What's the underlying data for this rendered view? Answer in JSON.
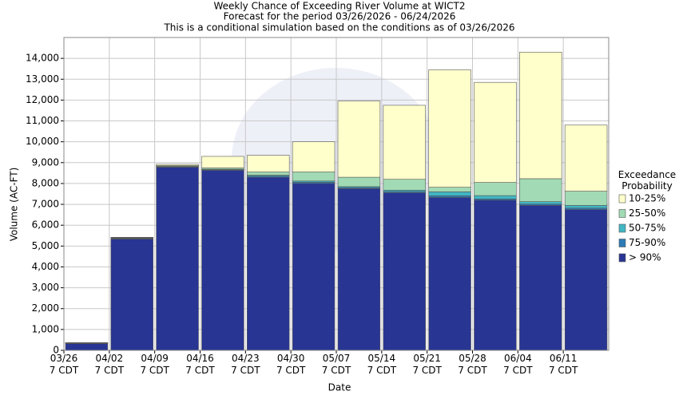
{
  "chart_data": {
    "type": "stacked_bar",
    "title": "Weekly Chance of Exceeding River Volume at WICT2",
    "subtitle": "Forecast for the period 03/26/2026 - 06/24/2026",
    "note": "This is a conditional simulation based on the conditions as of 03/26/2026",
    "x_label": "Date",
    "y_label": "Volume (AC-FT)",
    "legend_title": "Exceedance\nProbability",
    "legend_position": "right",
    "grid": true,
    "categories": [
      "03/26\n7 CDT",
      "04/02\n7 CDT",
      "04/09\n7 CDT",
      "04/16\n7 CDT",
      "04/23\n7 CDT",
      "04/30\n7 CDT",
      "05/07\n7 CDT",
      "05/14\n7 CDT",
      "05/21\n7 CDT",
      "05/28\n7 CDT",
      "06/04\n7 CDT",
      "06/11\n7 CDT"
    ],
    "series": [
      {
        "name": "> 90%",
        "color": "#283593",
        "values": [
          320,
          5330,
          8780,
          8630,
          8300,
          8000,
          7750,
          7550,
          7330,
          7200,
          6950,
          6750
        ]
      },
      {
        "name": "75-90%",
        "color": "#2c7bb6",
        "values": [
          10,
          30,
          20,
          30,
          50,
          60,
          50,
          60,
          80,
          60,
          60,
          70
        ]
      },
      {
        "name": "50-75%",
        "color": "#41b6c4",
        "values": [
          10,
          20,
          20,
          20,
          50,
          60,
          50,
          70,
          190,
          160,
          120,
          130
        ]
      },
      {
        "name": "25-50%",
        "color": "#a1dab4",
        "values": [
          10,
          20,
          40,
          70,
          150,
          430,
          450,
          520,
          220,
          630,
          1100,
          680
        ]
      },
      {
        "name": "10-25%",
        "color": "#ffffcc",
        "values": [
          20,
          20,
          60,
          550,
          800,
          1450,
          3650,
          3550,
          5630,
          4800,
          6070,
          3170
        ]
      }
    ],
    "ylim": [
      0,
      15000
    ],
    "yticks": [
      0,
      {
        "value": 1000,
        "label": "1,000"
      },
      {
        "value": 2000,
        "label": "2,000"
      },
      {
        "value": 3000,
        "label": "3,000"
      },
      {
        "value": 4000,
        "label": "4,000"
      },
      {
        "value": 5000,
        "label": "5,000"
      },
      {
        "value": 6000,
        "label": "6,000"
      },
      {
        "value": 7000,
        "label": "7,000"
      },
      {
        "value": 8000,
        "label": "8,000"
      },
      {
        "value": 9000,
        "label": "9,000"
      },
      {
        "value": 10000,
        "label": "10,000"
      },
      {
        "value": 11000,
        "label": "11,000"
      },
      {
        "value": 12000,
        "label": "12,000"
      },
      {
        "value": 13000,
        "label": "13,000"
      },
      {
        "value": 14000,
        "label": "14,000"
      }
    ]
  }
}
